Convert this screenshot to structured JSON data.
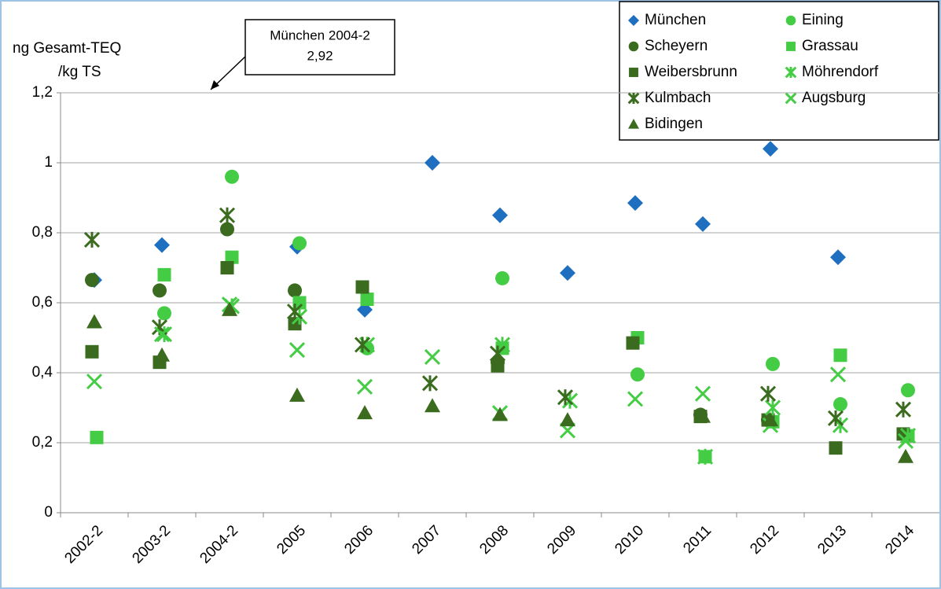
{
  "chart_data": {
    "type": "scatter",
    "y_label": [
      "ng Gesamt-TEQ",
      "/kg TS"
    ],
    "annotation": [
      "München 2004-2",
      "2,92"
    ],
    "categories": [
      "2002-2",
      "2003-2",
      "2004-2",
      "2005",
      "2006",
      "2007",
      "2008",
      "2009",
      "2010",
      "2011",
      "2012",
      "2013",
      "2014"
    ],
    "ylim": [
      0,
      1.2
    ],
    "yticks": [
      0,
      {
        "value": 0.2,
        "label": "0,2"
      },
      {
        "value": 0.4,
        "label": "0,4"
      },
      {
        "value": 0.6,
        "label": "0,6"
      },
      {
        "value": 0.8,
        "label": "0,8"
      },
      1,
      {
        "value": 1.2,
        "label": "1,2"
      }
    ],
    "grid": true,
    "series": [
      {
        "name": "München",
        "color": "#1f6fc0",
        "marker": "diamond",
        "values": [
          0.665,
          0.765,
          null,
          0.76,
          0.58,
          1.0,
          0.85,
          0.685,
          0.885,
          0.825,
          1.04,
          0.73,
          null
        ]
      },
      {
        "name": "Eining",
        "color": "#44cc44",
        "marker": "circle",
        "values": [
          null,
          0.57,
          0.96,
          0.77,
          0.47,
          null,
          0.67,
          null,
          0.395,
          null,
          0.425,
          0.31,
          0.35
        ]
      },
      {
        "name": "Scheyern",
        "color": "#3a6b1f",
        "marker": "circle",
        "values": [
          0.665,
          0.635,
          0.81,
          0.635,
          null,
          null,
          0.43,
          null,
          null,
          0.28,
          0.265,
          null,
          null
        ]
      },
      {
        "name": "Grassau",
        "color": "#44cc44",
        "marker": "square",
        "values": [
          0.215,
          0.68,
          0.73,
          0.6,
          0.61,
          null,
          0.47,
          null,
          0.5,
          0.16,
          0.26,
          0.45,
          0.22
        ]
      },
      {
        "name": "Weibersbrunn",
        "color": "#3a6b1f",
        "marker": "square",
        "values": [
          0.46,
          0.43,
          0.7,
          0.54,
          0.645,
          null,
          0.42,
          null,
          0.485,
          0.275,
          0.265,
          0.185,
          0.225
        ]
      },
      {
        "name": "Möhrendorf",
        "color": "#44cc44",
        "marker": "asterisk",
        "values": [
          null,
          0.51,
          0.59,
          0.56,
          0.48,
          null,
          0.48,
          0.32,
          null,
          0.16,
          0.3,
          0.25,
          0.22
        ]
      },
      {
        "name": "Kulmbach",
        "color": "#3a6b1f",
        "marker": "asterisk",
        "values": [
          0.78,
          0.53,
          0.85,
          0.575,
          0.48,
          0.37,
          0.455,
          0.33,
          null,
          null,
          0.34,
          0.27,
          0.295
        ]
      },
      {
        "name": "Augsburg",
        "color": "#44cc44",
        "marker": "x",
        "values": [
          0.375,
          0.51,
          0.595,
          0.465,
          0.36,
          0.445,
          0.285,
          0.235,
          0.325,
          0.34,
          0.25,
          0.395,
          0.205
        ]
      },
      {
        "name": "Bidingen",
        "color": "#3a6b1f",
        "marker": "triangle",
        "values": [
          0.545,
          0.45,
          0.58,
          0.335,
          0.285,
          0.305,
          0.28,
          0.265,
          null,
          0.275,
          0.265,
          null,
          0.16
        ]
      }
    ]
  }
}
